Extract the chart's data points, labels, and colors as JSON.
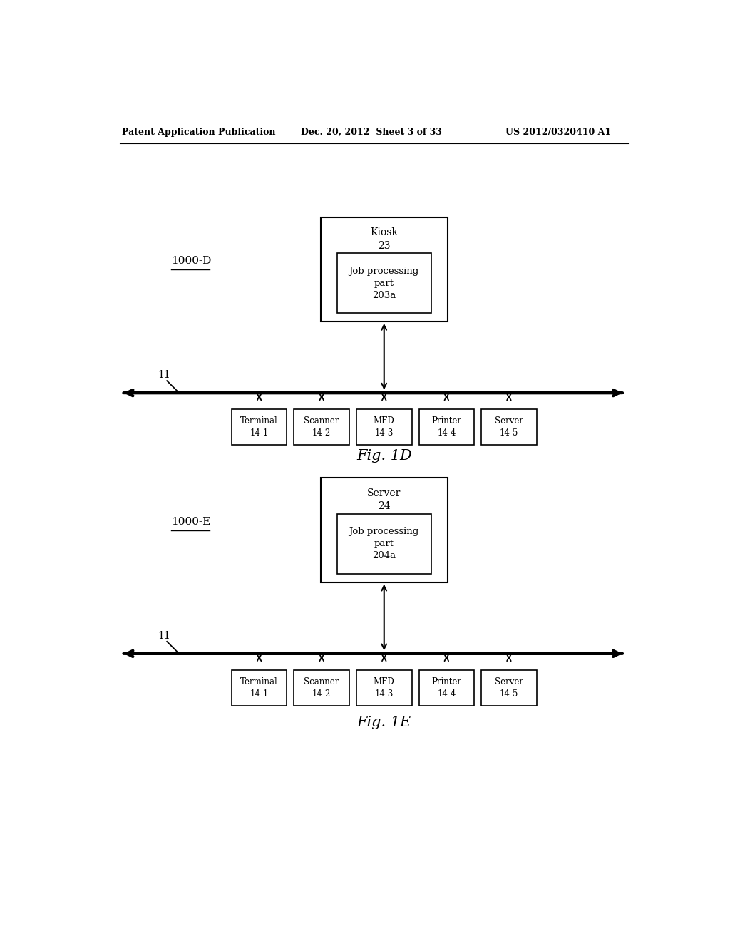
{
  "header_left": "Patent Application Publication",
  "header_mid": "Dec. 20, 2012  Sheet 3 of 33",
  "header_right": "US 2012/0320410 A1",
  "fig1d_label": "1000-D",
  "fig1d_caption": "Fig. 1D",
  "fig1e_label": "1000-E",
  "fig1e_caption": "Fig. 1E",
  "bus_label": "11",
  "diagram1": {
    "outer_box_label_top": "Kiosk",
    "outer_box_label_num": "23",
    "inner_box_label": "Job processing\npart\n203a",
    "devices": [
      {
        "label": "Terminal\n14-1"
      },
      {
        "label": "Scanner\n14-2"
      },
      {
        "label": "MFD\n14-3"
      },
      {
        "label": "Printer\n14-4"
      },
      {
        "label": "Server\n14-5"
      }
    ],
    "mfd_index": 2
  },
  "diagram2": {
    "outer_box_label_top": "Server",
    "outer_box_label_num": "24",
    "inner_box_label": "Job processing\npart\n204a",
    "devices": [
      {
        "label": "Terminal\n14-1"
      },
      {
        "label": "Scanner\n14-2"
      },
      {
        "label": "MFD\n14-3"
      },
      {
        "label": "Printer\n14-4"
      },
      {
        "label": "Server\n14-5"
      }
    ],
    "mfd_index": 2
  },
  "bg_color": "#ffffff",
  "box_color": "#000000",
  "text_color": "#000000",
  "font_family": "DejaVu Serif"
}
